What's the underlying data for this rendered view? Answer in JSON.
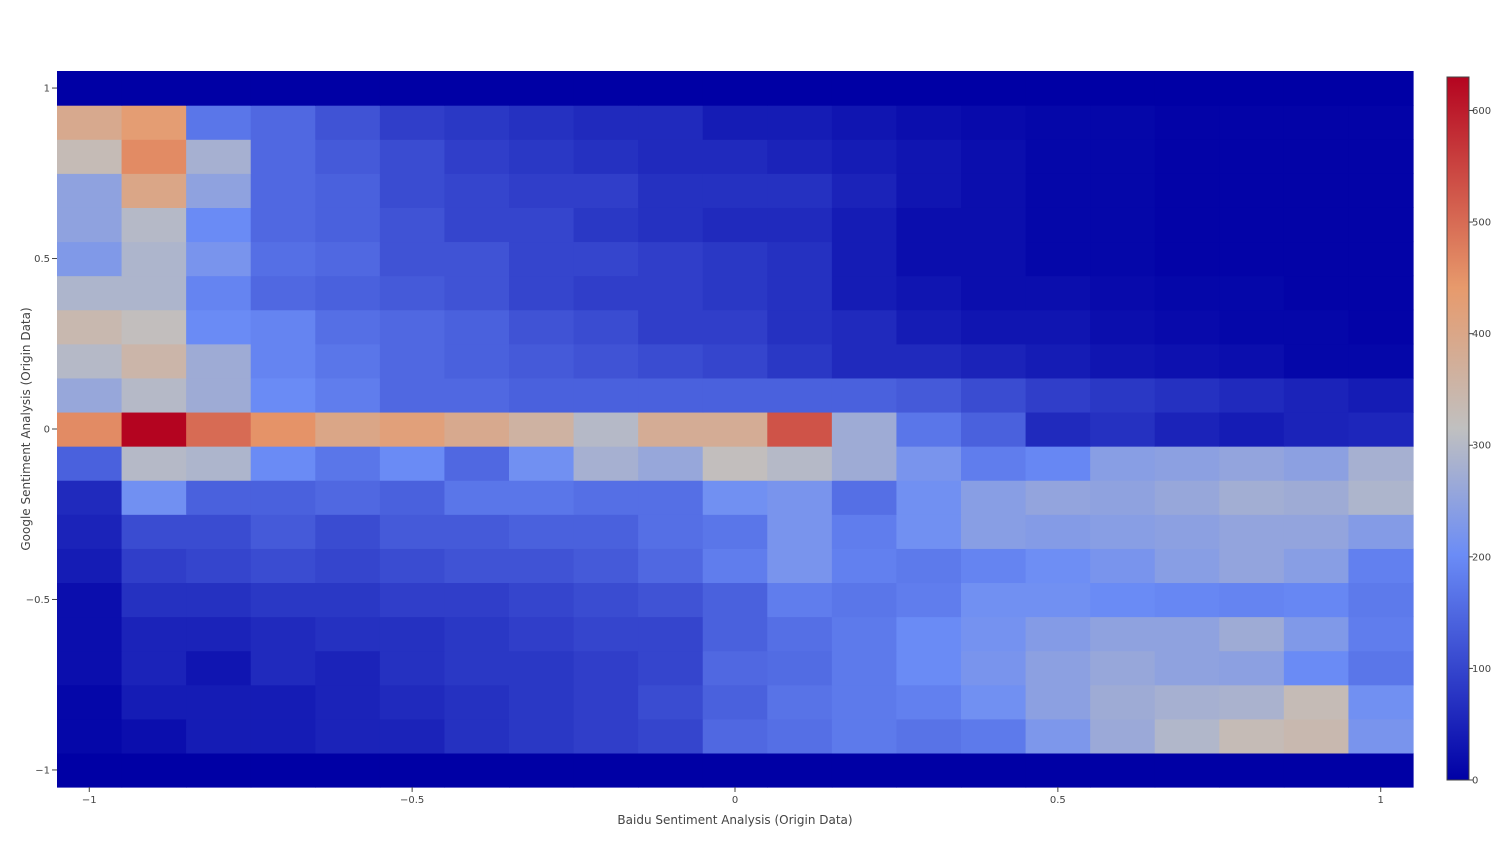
{
  "chart_data": {
    "type": "heatmap",
    "xlabel": "Baidu Sentiment Analysis (Origin Data)",
    "ylabel": "Google Sentiment Analysis (Origin Data)",
    "x_edges": [
      -1.05,
      -0.95,
      -0.85,
      -0.75,
      -0.65,
      -0.55,
      -0.45,
      -0.35,
      -0.25,
      -0.15,
      -0.05,
      0.05,
      0.15,
      0.25,
      0.35,
      0.45,
      0.55,
      0.65,
      0.75,
      0.85,
      0.95,
      1.05
    ],
    "y_edges": [
      -1.05,
      -0.95,
      -0.85,
      -0.75,
      -0.65,
      -0.55,
      -0.45,
      -0.35,
      -0.25,
      -0.15,
      -0.05,
      0.05,
      0.15,
      0.25,
      0.35,
      0.45,
      0.55,
      0.65,
      0.75,
      0.85,
      0.95,
      1.05
    ],
    "xlim": [
      -1.05,
      1.05
    ],
    "ylim": [
      -1.05,
      1.05
    ],
    "x_ticks": [
      {
        "value": -1,
        "label": "−1"
      },
      {
        "value": -0.5,
        "label": "−0.5"
      },
      {
        "value": 0,
        "label": "0"
      },
      {
        "value": 0.5,
        "label": "0.5"
      },
      {
        "value": 1,
        "label": "1"
      }
    ],
    "y_ticks": [
      {
        "value": -1,
        "label": "−1"
      },
      {
        "value": -0.5,
        "label": "−0.5"
      },
      {
        "value": 0,
        "label": "0"
      },
      {
        "value": 0.5,
        "label": "0.5"
      },
      {
        "value": 1,
        "label": "1"
      }
    ],
    "colorscale": {
      "zmin": 0,
      "zmax": 630,
      "ticks": [
        0,
        100,
        200,
        300,
        400,
        500,
        600
      ],
      "stops": [
        [
          0.0,
          "#0000a5"
        ],
        [
          0.32,
          "#6b8cf6"
        ],
        [
          0.5,
          "#c0c0c0"
        ],
        [
          0.7,
          "#e79a6c"
        ],
        [
          1.0,
          "#b40420"
        ]
      ]
    },
    "z": [
      [
        0,
        0,
        0,
        0,
        0,
        0,
        0,
        0,
        0,
        0,
        0,
        0,
        0,
        0,
        0,
        0,
        0,
        0,
        0,
        0,
        0
      ],
      [
        10,
        20,
        40,
        40,
        50,
        50,
        70,
        80,
        90,
        100,
        150,
        160,
        175,
        165,
        175,
        225,
        265,
        295,
        330,
        340,
        220
      ],
      [
        10,
        40,
        40,
        40,
        50,
        60,
        70,
        80,
        90,
        110,
        140,
        165,
        175,
        185,
        210,
        245,
        270,
        280,
        285,
        330,
        210
      ],
      [
        20,
        50,
        30,
        60,
        50,
        70,
        80,
        80,
        90,
        100,
        150,
        155,
        175,
        200,
        220,
        245,
        260,
        250,
        245,
        200,
        170
      ],
      [
        20,
        50,
        50,
        60,
        70,
        70,
        80,
        90,
        100,
        100,
        140,
        160,
        175,
        200,
        215,
        235,
        250,
        250,
        270,
        230,
        180
      ],
      [
        20,
        70,
        70,
        80,
        80,
        90,
        90,
        100,
        110,
        120,
        140,
        180,
        170,
        180,
        210,
        210,
        200,
        195,
        190,
        195,
        175
      ],
      [
        40,
        90,
        100,
        110,
        100,
        110,
        120,
        120,
        130,
        150,
        180,
        220,
        185,
        175,
        190,
        205,
        220,
        240,
        255,
        240,
        185
      ],
      [
        50,
        110,
        110,
        130,
        110,
        130,
        130,
        140,
        140,
        160,
        170,
        220,
        180,
        210,
        240,
        235,
        240,
        245,
        255,
        255,
        235
      ],
      [
        60,
        210,
        140,
        140,
        150,
        140,
        170,
        170,
        160,
        160,
        210,
        220,
        160,
        210,
        240,
        255,
        250,
        260,
        275,
        270,
        290
      ],
      [
        140,
        300,
        290,
        200,
        170,
        200,
        150,
        210,
        280,
        260,
        320,
        300,
        270,
        220,
        180,
        195,
        240,
        245,
        255,
        245,
        280
      ],
      [
        460,
        630,
        500,
        450,
        400,
        420,
        390,
        360,
        300,
        380,
        380,
        530,
        270,
        170,
        140,
        60,
        70,
        50,
        40,
        50,
        55
      ],
      [
        260,
        300,
        270,
        200,
        180,
        150,
        150,
        140,
        140,
        140,
        140,
        140,
        140,
        130,
        110,
        90,
        80,
        70,
        60,
        50,
        40
      ],
      [
        300,
        350,
        270,
        190,
        170,
        150,
        140,
        130,
        120,
        110,
        100,
        80,
        60,
        60,
        50,
        40,
        30,
        25,
        20,
        10,
        10
      ],
      [
        340,
        320,
        200,
        190,
        160,
        150,
        140,
        120,
        110,
        90,
        90,
        70,
        60,
        40,
        30,
        30,
        20,
        15,
        10,
        10,
        5
      ],
      [
        290,
        290,
        190,
        150,
        140,
        130,
        120,
        100,
        90,
        90,
        80,
        70,
        40,
        30,
        20,
        20,
        15,
        10,
        10,
        5,
        5
      ],
      [
        230,
        290,
        220,
        160,
        150,
        120,
        120,
        100,
        100,
        90,
        80,
        70,
        40,
        20,
        20,
        10,
        10,
        5,
        5,
        5,
        5
      ],
      [
        250,
        300,
        200,
        150,
        140,
        120,
        100,
        100,
        80,
        70,
        60,
        60,
        40,
        20,
        20,
        10,
        10,
        5,
        5,
        5,
        5
      ],
      [
        250,
        400,
        250,
        150,
        140,
        110,
        100,
        90,
        90,
        70,
        70,
        70,
        50,
        30,
        20,
        10,
        10,
        5,
        5,
        5,
        5
      ],
      [
        330,
        460,
        280,
        150,
        130,
        110,
        90,
        80,
        70,
        60,
        60,
        50,
        40,
        30,
        20,
        10,
        10,
        5,
        5,
        5,
        5
      ],
      [
        390,
        430,
        170,
        150,
        120,
        90,
        80,
        70,
        60,
        60,
        40,
        40,
        30,
        20,
        15,
        10,
        10,
        5,
        5,
        5,
        5
      ],
      [
        0,
        0,
        0,
        0,
        0,
        0,
        0,
        0,
        0,
        0,
        0,
        0,
        0,
        0,
        0,
        0,
        0,
        0,
        0,
        0,
        0
      ]
    ]
  }
}
